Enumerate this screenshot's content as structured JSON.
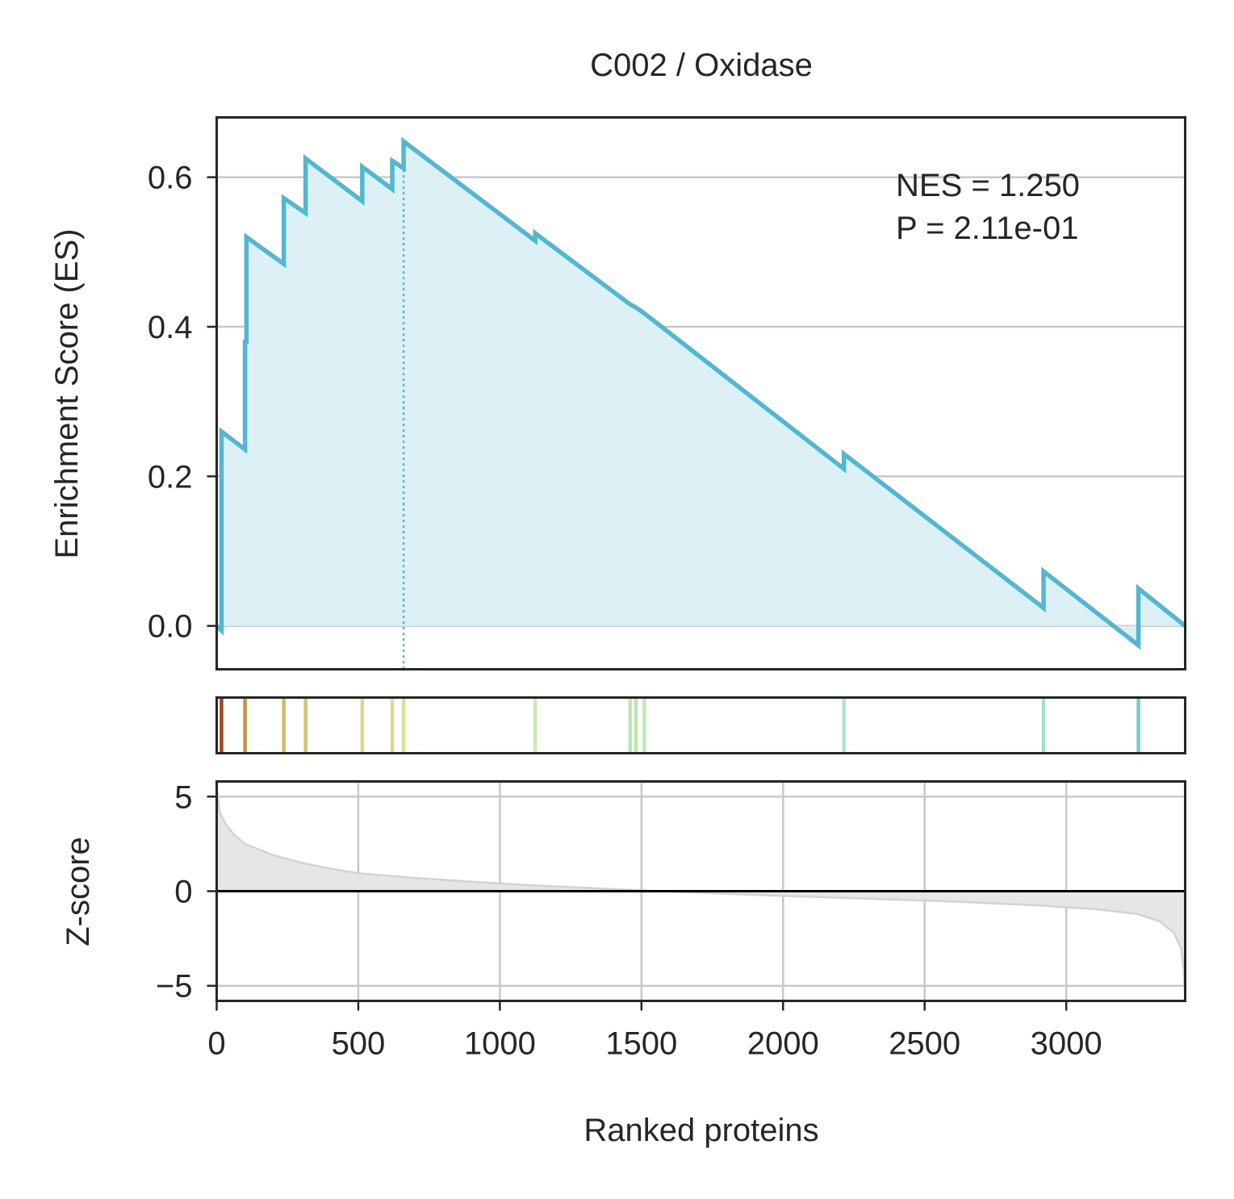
{
  "chart_data": {
    "type": "line",
    "title": "C002 / Oxidase",
    "annotation": [
      "NES = 1.250",
      "P = 2.11e-01"
    ],
    "colors": {
      "es_line": "#52b7d0",
      "es_fill": "#dcf0f5",
      "grid": "#c8c8c8",
      "zscore_fill": "#e6e6e6",
      "zscore_line": "#d3d3d3",
      "axis": "#262626"
    },
    "xlabel": "Ranked proteins",
    "xlim": [
      0,
      3420
    ],
    "xticks": [
      0,
      500,
      1000,
      1500,
      2000,
      2500,
      3000
    ],
    "xtick_labels": [
      "0",
      "500",
      "1000",
      "1500",
      "2000",
      "2500",
      "3000"
    ],
    "es_panel": {
      "ylabel": "Enrichment Score (ES)",
      "ylim": [
        -0.058,
        0.68
      ],
      "yticks": [
        0.0,
        0.2,
        0.4,
        0.6
      ],
      "ytick_labels": [
        "0.0",
        "0.2",
        "0.4",
        "0.6"
      ],
      "grid": "horizontal",
      "peak_x": 660,
      "points": [
        {
          "x": 0,
          "y": 0.0
        },
        {
          "x": 17,
          "y": -0.006
        },
        {
          "x": 17,
          "y": 0.26
        },
        {
          "x": 100,
          "y": 0.236
        },
        {
          "x": 100,
          "y": 0.38
        },
        {
          "x": 105,
          "y": 0.38
        },
        {
          "x": 105,
          "y": 0.52
        },
        {
          "x": 237,
          "y": 0.484
        },
        {
          "x": 237,
          "y": 0.572
        },
        {
          "x": 314,
          "y": 0.552
        },
        {
          "x": 314,
          "y": 0.625
        },
        {
          "x": 514,
          "y": 0.568
        },
        {
          "x": 514,
          "y": 0.614
        },
        {
          "x": 620,
          "y": 0.584
        },
        {
          "x": 620,
          "y": 0.622
        },
        {
          "x": 660,
          "y": 0.612
        },
        {
          "x": 660,
          "y": 0.648
        },
        {
          "x": 1125,
          "y": 0.515
        },
        {
          "x": 1125,
          "y": 0.525
        },
        {
          "x": 1460,
          "y": 0.43
        },
        {
          "x": 1480,
          "y": 0.426
        },
        {
          "x": 1510,
          "y": 0.418
        },
        {
          "x": 2215,
          "y": 0.21
        },
        {
          "x": 2215,
          "y": 0.23
        },
        {
          "x": 2920,
          "y": 0.024
        },
        {
          "x": 2920,
          "y": 0.073
        },
        {
          "x": 3255,
          "y": -0.026
        },
        {
          "x": 3255,
          "y": 0.05
        },
        {
          "x": 3420,
          "y": 0.0
        }
      ]
    },
    "hits": {
      "positions": [
        17,
        100,
        237,
        314,
        514,
        620,
        660,
        1125,
        1460,
        1480,
        1510,
        2215,
        2920,
        3255
      ],
      "colors": [
        "#a0481b",
        "#c4953e",
        "#d4b96a",
        "#d4c474",
        "#d8d98c",
        "#d8dd90",
        "#dde094",
        "#cde8ae",
        "#bde6b0",
        "#bde6b0",
        "#c2e8b8",
        "#ade8c8",
        "#9adfd2",
        "#72ccd0"
      ]
    },
    "zscore_panel": {
      "ylabel": "Z-score",
      "ylim": [
        -5.8,
        5.8
      ],
      "yticks": [
        -5,
        0,
        5
      ],
      "ytick_labels": [
        "−5",
        "0",
        "5"
      ],
      "grid": "both",
      "curve": [
        {
          "x": 0,
          "y": 5.6
        },
        {
          "x": 10,
          "y": 4.2
        },
        {
          "x": 30,
          "y": 3.6
        },
        {
          "x": 60,
          "y": 3.0
        },
        {
          "x": 100,
          "y": 2.5
        },
        {
          "x": 150,
          "y": 2.2
        },
        {
          "x": 200,
          "y": 1.9
        },
        {
          "x": 300,
          "y": 1.5
        },
        {
          "x": 400,
          "y": 1.2
        },
        {
          "x": 500,
          "y": 0.95
        },
        {
          "x": 700,
          "y": 0.7
        },
        {
          "x": 900,
          "y": 0.5
        },
        {
          "x": 1100,
          "y": 0.32
        },
        {
          "x": 1300,
          "y": 0.18
        },
        {
          "x": 1500,
          "y": 0.04
        },
        {
          "x": 1700,
          "y": -0.08
        },
        {
          "x": 2000,
          "y": -0.25
        },
        {
          "x": 2300,
          "y": -0.4
        },
        {
          "x": 2600,
          "y": -0.55
        },
        {
          "x": 2900,
          "y": -0.75
        },
        {
          "x": 3100,
          "y": -0.95
        },
        {
          "x": 3250,
          "y": -1.2
        },
        {
          "x": 3330,
          "y": -1.6
        },
        {
          "x": 3380,
          "y": -2.2
        },
        {
          "x": 3405,
          "y": -3.0
        },
        {
          "x": 3415,
          "y": -4.2
        },
        {
          "x": 3420,
          "y": -5.6
        }
      ]
    }
  }
}
